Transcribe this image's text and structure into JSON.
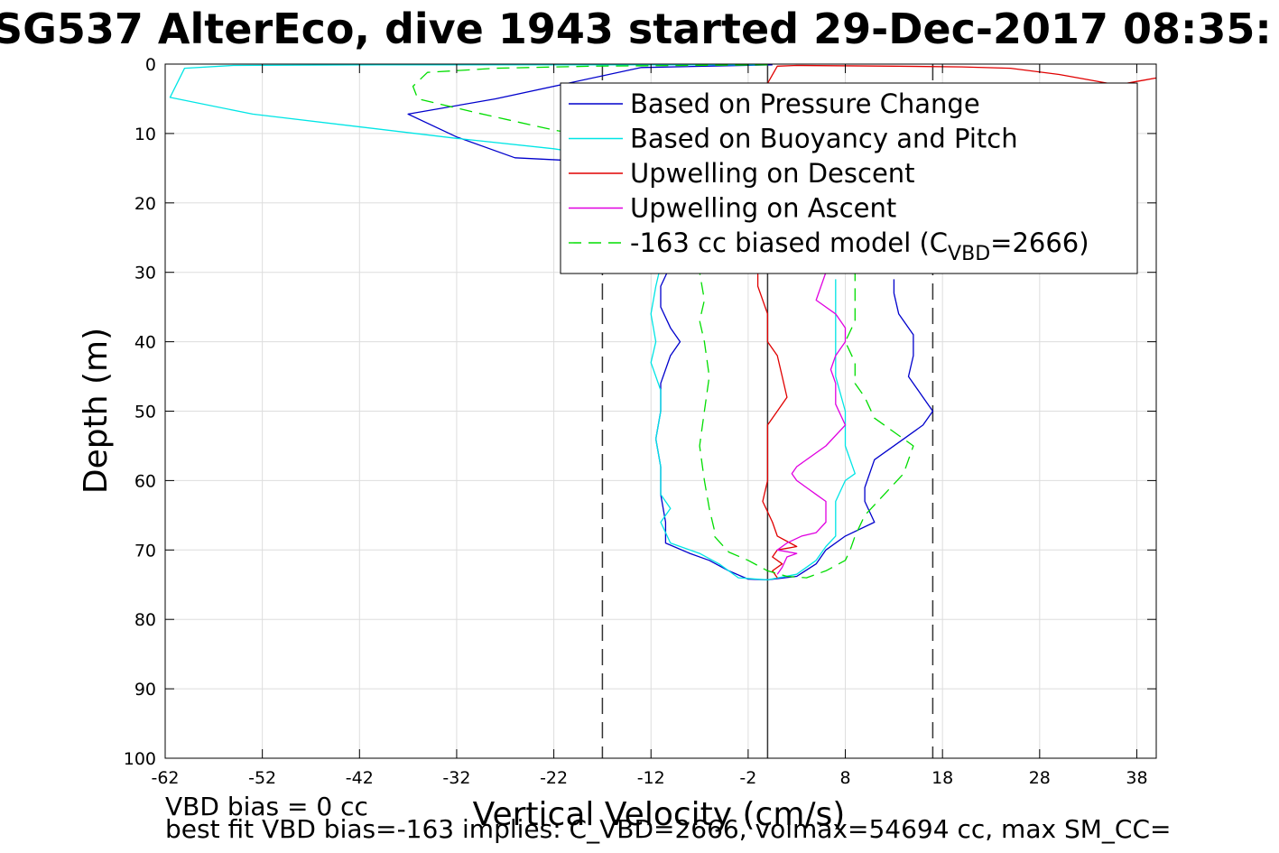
{
  "page": {
    "title": "SG537 AlterEco, dive 1943 started 29-Dec-2017 08:35:",
    "footnote_line1": "VBD bias = 0 cc",
    "footnote_line2": "best fit VBD bias=-163 implies: C_VBD=2666, volmax=54694 cc, max SM_CC="
  },
  "colors": {
    "pressure": "#0000cc",
    "buoyancy": "#00e5e5",
    "descent": "#e00000",
    "ascent": "#e000e0",
    "model": "#00dd00",
    "grid": "#dddddd",
    "axis": "#000000"
  },
  "chart_data": {
    "type": "line",
    "xlabel": "Vertical Velocity (cm/s)",
    "ylabel": "Depth (m)",
    "xlim": [
      -62,
      40
    ],
    "ylim": [
      0,
      100
    ],
    "y_reversed": true,
    "grid": true,
    "legend_position": "top-right",
    "x_ticks": [
      -62,
      -52,
      -42,
      -32,
      -22,
      -12,
      -2,
      8,
      18,
      28,
      38
    ],
    "y_ticks": [
      0,
      10,
      20,
      30,
      40,
      50,
      60,
      70,
      80,
      90,
      100
    ],
    "reference_lines": [
      {
        "x": -17,
        "style": "dashed"
      },
      {
        "x": 0,
        "style": "solid"
      },
      {
        "x": 17,
        "style": "dashed"
      }
    ],
    "legend": [
      {
        "key": "pressure",
        "label": "Based on Pressure Change",
        "style": "solid"
      },
      {
        "key": "buoyancy",
        "label": "Based on Buoyancy and Pitch",
        "style": "solid"
      },
      {
        "key": "descent",
        "label": "Upwelling on Descent",
        "style": "solid"
      },
      {
        "key": "ascent",
        "label": "Upwelling on Ascent",
        "style": "solid"
      },
      {
        "key": "model",
        "label_pre": "-163 cc biased model (C",
        "label_sub": "VBD",
        "label_post": "=2666)",
        "style": "dashed"
      }
    ],
    "series": [
      {
        "key": "pressure",
        "name": "Based on Pressure Change",
        "points": [
          [
            0.5,
            0.1
          ],
          [
            -13,
            0.5
          ],
          [
            -28,
            5
          ],
          [
            -37,
            7.2
          ],
          [
            -32,
            10.5
          ],
          [
            -26,
            13.5
          ],
          [
            -16,
            14.2
          ],
          [
            -12,
            20
          ],
          [
            -10,
            26
          ],
          [
            -10,
            29
          ],
          [
            -11,
            32
          ],
          [
            -11,
            35
          ],
          [
            -10,
            38
          ],
          [
            -9,
            40
          ],
          [
            -10,
            42
          ],
          [
            -11,
            46
          ],
          [
            -11,
            50
          ],
          [
            -11.5,
            54
          ],
          [
            -11,
            58
          ],
          [
            -11,
            62
          ],
          [
            -10.5,
            66
          ],
          [
            -10.5,
            69
          ],
          [
            -8,
            70.5
          ],
          [
            -6,
            71.5
          ],
          [
            -4,
            73
          ],
          [
            -2,
            74.2
          ],
          [
            0,
            74.3
          ],
          [
            3,
            73.8
          ],
          [
            5,
            72
          ],
          [
            6,
            70
          ],
          [
            8,
            68
          ],
          [
            11,
            66
          ],
          [
            10,
            63
          ],
          [
            10,
            61
          ],
          [
            11,
            57
          ],
          [
            14,
            54
          ],
          [
            16,
            52
          ],
          [
            17,
            50
          ],
          [
            16,
            48
          ],
          [
            14.5,
            45
          ],
          [
            15,
            42
          ],
          [
            15,
            39
          ],
          [
            13.5,
            36
          ],
          [
            13,
            33
          ],
          [
            13,
            31
          ]
        ]
      },
      {
        "key": "buoyancy",
        "name": "Based on Buoyancy and Pitch",
        "points": [
          [
            0,
            0.1
          ],
          [
            -40,
            0.1
          ],
          [
            -55,
            0.2
          ],
          [
            -60,
            0.6
          ],
          [
            -61.5,
            4.8
          ],
          [
            -53,
            7.2
          ],
          [
            -32,
            10.7
          ],
          [
            -22,
            12.2
          ],
          [
            -16,
            13.5
          ],
          [
            -12,
            20
          ],
          [
            -11,
            25
          ],
          [
            -11,
            29
          ],
          [
            -11.5,
            32
          ],
          [
            -12,
            36
          ],
          [
            -11.5,
            40
          ],
          [
            -12,
            43
          ],
          [
            -11,
            47
          ],
          [
            -11,
            50
          ],
          [
            -11.5,
            54
          ],
          [
            -11,
            58
          ],
          [
            -11,
            62
          ],
          [
            -10,
            64
          ],
          [
            -11,
            66
          ],
          [
            -10,
            69
          ],
          [
            -7,
            70.5
          ],
          [
            -5,
            72
          ],
          [
            -3,
            74
          ],
          [
            0,
            74.3
          ],
          [
            3,
            73.5
          ],
          [
            5,
            71.5
          ],
          [
            6,
            69.5
          ],
          [
            7,
            68
          ],
          [
            7,
            63
          ],
          [
            8,
            60
          ],
          [
            9,
            59
          ],
          [
            8,
            55
          ],
          [
            8,
            50
          ],
          [
            7,
            45
          ],
          [
            7,
            40
          ],
          [
            7,
            35
          ],
          [
            7,
            31
          ]
        ]
      },
      {
        "key": "descent",
        "name": "Upwelling on Descent",
        "points": [
          [
            40,
            2
          ],
          [
            38,
            2.5
          ],
          [
            36,
            3
          ],
          [
            30,
            1.5
          ],
          [
            25,
            0.6
          ],
          [
            20,
            0.4
          ],
          [
            13,
            0.3
          ],
          [
            3,
            0.2
          ],
          [
            1,
            0.3
          ],
          [
            -0.5,
            4
          ],
          [
            -1,
            10
          ],
          [
            -1,
            20
          ],
          [
            -1,
            28
          ],
          [
            -1,
            32
          ],
          [
            0,
            36
          ],
          [
            0,
            40
          ],
          [
            1,
            42
          ],
          [
            1.5,
            45
          ],
          [
            2,
            48
          ],
          [
            1,
            50
          ],
          [
            0,
            52
          ],
          [
            0,
            56
          ],
          [
            0,
            60
          ],
          [
            -0.5,
            63
          ],
          [
            0.5,
            66
          ],
          [
            1,
            68
          ],
          [
            3,
            69.5
          ],
          [
            1,
            70
          ],
          [
            0.5,
            71
          ],
          [
            1.5,
            72
          ],
          [
            0.5,
            73
          ],
          [
            1,
            74
          ]
        ]
      },
      {
        "key": "ascent",
        "name": "Upwelling on Ascent",
        "points": [
          [
            1,
            73.5
          ],
          [
            1.5,
            72.5
          ],
          [
            2,
            71
          ],
          [
            3,
            70.5
          ],
          [
            1,
            70
          ],
          [
            2,
            69
          ],
          [
            3.5,
            68
          ],
          [
            5,
            67.5
          ],
          [
            6,
            66
          ],
          [
            6,
            63
          ],
          [
            5,
            62
          ],
          [
            4,
            61
          ],
          [
            3,
            60
          ],
          [
            2.5,
            59
          ],
          [
            3,
            58
          ],
          [
            6,
            55
          ],
          [
            8,
            52
          ],
          [
            7,
            49
          ],
          [
            7,
            46
          ],
          [
            6.5,
            44
          ],
          [
            7,
            42
          ],
          [
            8,
            40
          ],
          [
            8,
            38
          ],
          [
            7,
            36
          ],
          [
            5,
            34
          ],
          [
            6,
            30
          ]
        ]
      },
      {
        "key": "model",
        "name": "-163 cc biased model (CVBD=2666)",
        "dashed": true,
        "points": [
          [
            0,
            0.1
          ],
          [
            -18,
            0.3
          ],
          [
            -28,
            0.6
          ],
          [
            -35,
            1.2
          ],
          [
            -36.5,
            3.2
          ],
          [
            -36,
            5
          ],
          [
            -30,
            7
          ],
          [
            -22,
            9.5
          ],
          [
            -16,
            11
          ],
          [
            -11,
            15
          ],
          [
            -8,
            20
          ],
          [
            -7,
            25
          ],
          [
            -7,
            30
          ],
          [
            -6.5,
            34
          ],
          [
            -7,
            37
          ],
          [
            -6.5,
            40
          ],
          [
            -6,
            45
          ],
          [
            -6.5,
            50
          ],
          [
            -7,
            55
          ],
          [
            -6.5,
            60
          ],
          [
            -6,
            64
          ],
          [
            -5.5,
            67
          ],
          [
            -5.5,
            68
          ],
          [
            -4,
            70.3
          ],
          [
            -2,
            71.5
          ],
          [
            0,
            73
          ],
          [
            2,
            73.8
          ],
          [
            4,
            74
          ],
          [
            6,
            73
          ],
          [
            8,
            71.5
          ],
          [
            8.5,
            70
          ],
          [
            9,
            68
          ],
          [
            10,
            65
          ],
          [
            12,
            62
          ],
          [
            14,
            59
          ],
          [
            15,
            55
          ],
          [
            13,
            53
          ],
          [
            11,
            51
          ],
          [
            10,
            48
          ],
          [
            9,
            46
          ],
          [
            9,
            43
          ],
          [
            8,
            40
          ],
          [
            9,
            37
          ],
          [
            9,
            34
          ],
          [
            9,
            30
          ]
        ]
      }
    ]
  }
}
